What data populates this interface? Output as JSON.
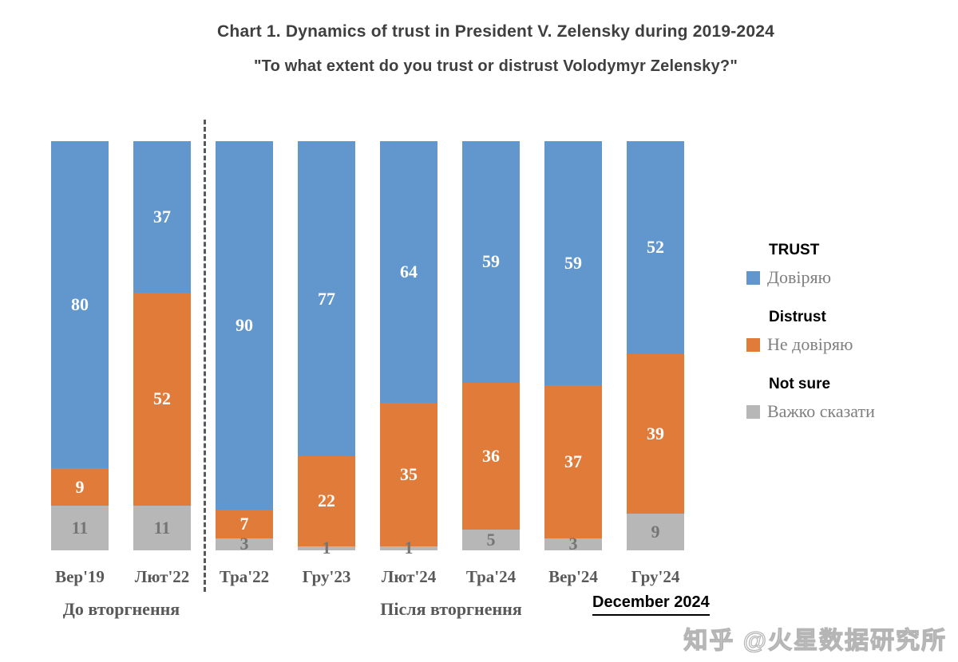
{
  "title": "Chart 1. Dynamics of trust in President V. Zelensky during 2019-2024",
  "subtitle": "\"To what extent do you trust or distrust Volodymyr Zelensky?\"",
  "chart_data": {
    "type": "bar",
    "stacked": true,
    "percent_stacked": true,
    "categories": [
      "Вер'19",
      "Лют'22",
      "Тра'22",
      "Гру'23",
      "Лют'24",
      "Тра'24",
      "Вер'24",
      "Гру'24"
    ],
    "series": [
      {
        "key": "trust",
        "name": "Довіряю",
        "name_en": "TRUST",
        "color": "#6297cd",
        "label_color": "#ffffff",
        "values": [
          80,
          37,
          90,
          77,
          64,
          59,
          59,
          52
        ]
      },
      {
        "key": "distrust",
        "name": "Не довіряю",
        "name_en": "Distrust",
        "color": "#e07b39",
        "label_color": "#ffffff",
        "values": [
          9,
          52,
          7,
          22,
          35,
          36,
          37,
          39
        ]
      },
      {
        "key": "not-sure",
        "name": "Важко сказати",
        "name_en": "Not sure",
        "color": "#b7b7b7",
        "label_color": "#757575",
        "values": [
          11,
          11,
          3,
          1,
          1,
          5,
          3,
          9
        ]
      }
    ],
    "ylim": [
      0,
      100
    ],
    "grid": false,
    "legend_position": "right",
    "divider_after_category_index": 1,
    "group_labels": [
      {
        "label": "До вторгнення",
        "span": [
          0,
          1
        ]
      },
      {
        "label": "Після вторгнення",
        "span": [
          2,
          7
        ]
      }
    ]
  },
  "legend": {
    "items": [
      {
        "title": "TRUST",
        "label": "Довіряю",
        "color": "#6297cd"
      },
      {
        "title": "Distrust",
        "label": "Не довіряю",
        "color": "#e07b39"
      },
      {
        "title": "Not sure",
        "label": "Важко сказати",
        "color": "#b7b7b7"
      }
    ]
  },
  "footer": {
    "date_label": "December 2024"
  },
  "watermark": "知乎 @火星数据研究所"
}
